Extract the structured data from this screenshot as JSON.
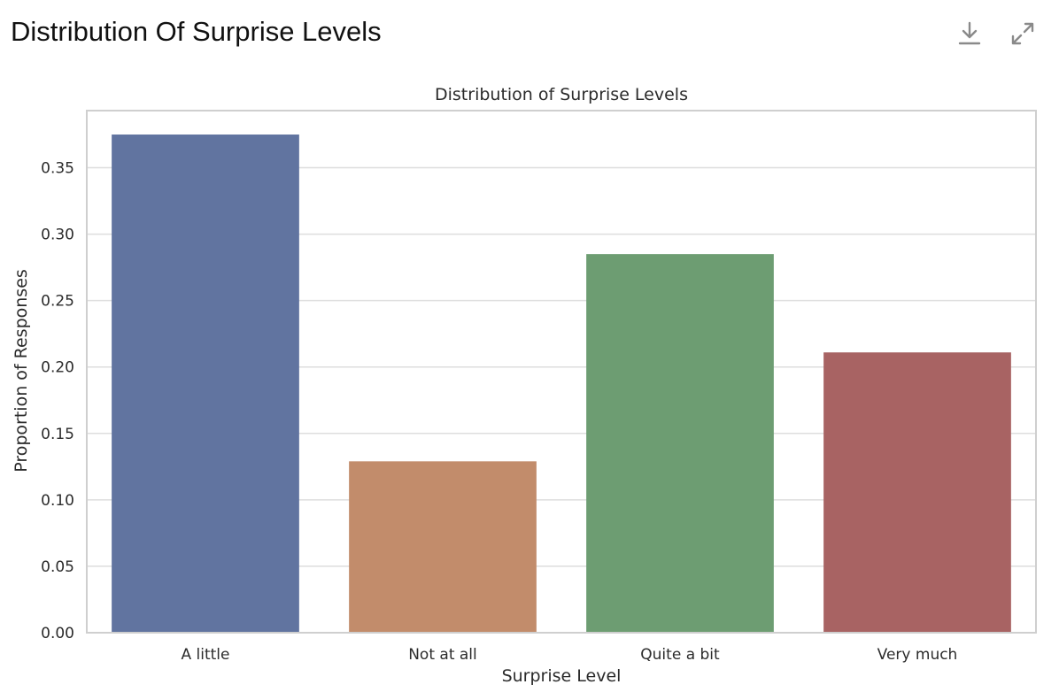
{
  "card": {
    "title": "Distribution Of Surprise Levels",
    "download_icon": "download-icon",
    "expand_icon": "expand-icon"
  },
  "chart_data": {
    "type": "bar",
    "title": "Distribution of Surprise Levels",
    "xlabel": "Surprise Level",
    "ylabel": "Proportion of Responses",
    "categories": [
      "A little",
      "Not at all",
      "Quite a bit",
      "Very much"
    ],
    "values": [
      0.375,
      0.129,
      0.285,
      0.211
    ],
    "colors": [
      "#6174a0",
      "#c28c6b",
      "#6d9d72",
      "#a86363"
    ],
    "ylim": [
      0,
      0.393
    ],
    "yticks": [
      0.0,
      0.05,
      0.1,
      0.15,
      0.2,
      0.25,
      0.3,
      0.35
    ],
    "ytick_labels": [
      "0.00",
      "0.05",
      "0.10",
      "0.15",
      "0.20",
      "0.25",
      "0.30",
      "0.35"
    ],
    "grid": true,
    "legend": "none"
  }
}
